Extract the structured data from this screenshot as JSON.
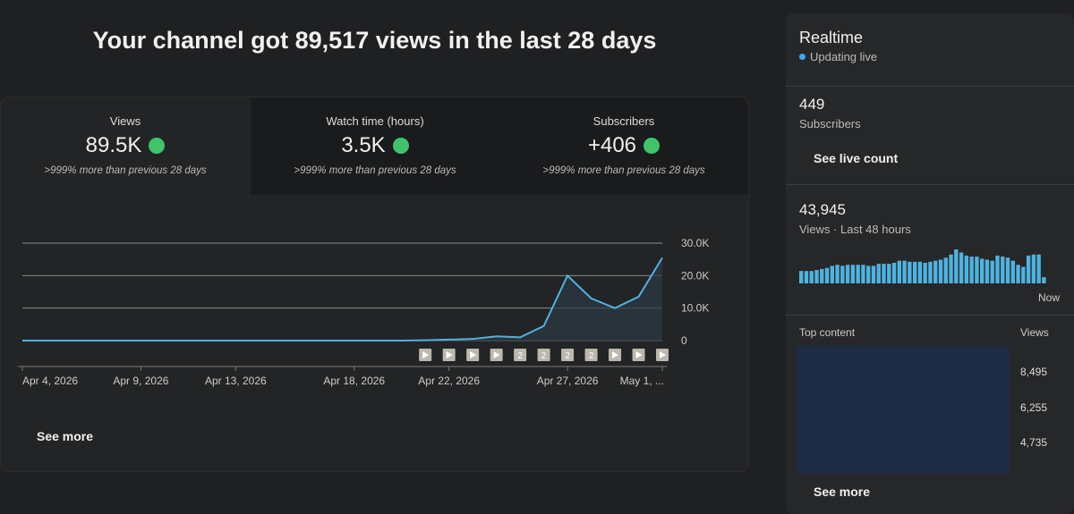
{
  "header": {
    "title": "Your channel got 89,517 views in the last 28 days"
  },
  "metrics": [
    {
      "label": "Views",
      "value": "89.5K",
      "change": ">999% more than previous 28 days"
    },
    {
      "label": "Watch time (hours)",
      "value": "3.5K",
      "change": ">999% more than previous 28 days"
    },
    {
      "label": "Subscribers",
      "value": "+406",
      "change": ">999% more than previous 28 days"
    }
  ],
  "chart_data": {
    "type": "line",
    "categories": [
      "Apr 4, 2026",
      null,
      null,
      null,
      null,
      "Apr 9, 2026",
      null,
      null,
      null,
      "Apr 13, 2026",
      null,
      null,
      null,
      null,
      "Apr 18, 2026",
      null,
      null,
      null,
      "Apr 22, 2026",
      null,
      null,
      null,
      null,
      "Apr 27, 2026",
      null,
      null,
      null,
      "May 1, ..."
    ],
    "values": [
      0,
      0,
      0,
      0,
      0,
      0,
      0,
      0,
      0,
      0,
      0,
      0,
      0,
      0,
      0,
      0,
      0,
      100,
      300,
      500,
      1300,
      1000,
      4500,
      20000,
      13000,
      10000,
      13500,
      25500
    ],
    "color": "#4fb3e0",
    "ylim": [
      0,
      30000
    ],
    "yticks": [
      0,
      {
        "value": 10000,
        "label": "10.0K"
      },
      {
        "value": 20000,
        "label": "20.0K"
      },
      {
        "value": 30000,
        "label": "30.0K"
      }
    ],
    "grid": true,
    "video_markers": [
      1,
      1,
      1,
      1,
      2,
      2,
      2,
      2,
      1,
      1,
      1
    ]
  },
  "see_more": "See more",
  "realtime": {
    "title": "Realtime",
    "status": "Updating live",
    "subscribers": {
      "value": "449",
      "label": "Subscribers"
    },
    "live_count_button": "See live count",
    "views": {
      "value": "43,945",
      "label": "Views · Last 48 hours"
    },
    "chart_data": {
      "type": "bar",
      "values": [
        600,
        600,
        600,
        650,
        700,
        750,
        850,
        900,
        850,
        900,
        900,
        900,
        900,
        850,
        850,
        950,
        950,
        950,
        1000,
        1100,
        1100,
        1050,
        1050,
        1050,
        1000,
        1050,
        1100,
        1150,
        1250,
        1400,
        1650,
        1500,
        1350,
        1300,
        1300,
        1200,
        1150,
        1100,
        1350,
        1300,
        1250,
        1100,
        900,
        800,
        1350,
        1400,
        1400,
        300
      ],
      "color": "#4fb3e0",
      "x_end_label": "Now"
    },
    "top_content": {
      "title": "Top content",
      "column": "Views",
      "views": [
        "8,495",
        "6,255",
        "4,735"
      ]
    },
    "see_more": "See more"
  }
}
